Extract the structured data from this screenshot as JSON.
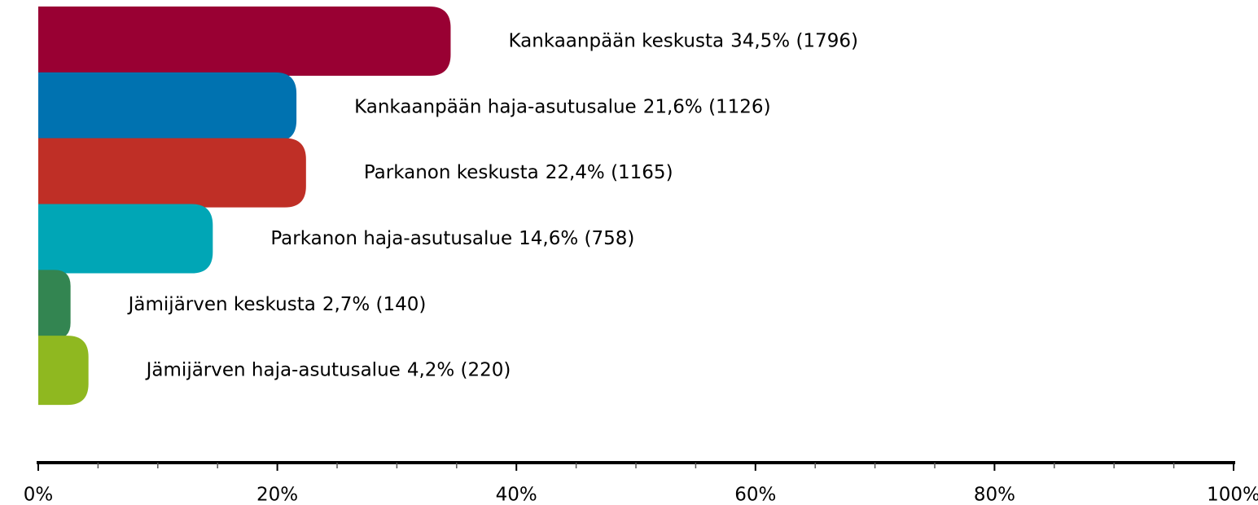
{
  "chart_data": {
    "type": "hbar",
    "categories": [
      "Kankaanpään keskusta",
      "Kankaanpään haja-asutusalue",
      "Parkanon keskusta",
      "Parkanon haja-asutusalue",
      "Jämijärven keskusta",
      "Jämijärven haja-asutusalue"
    ],
    "values": [
      34.5,
      21.6,
      22.4,
      14.6,
      2.7,
      4.2
    ],
    "value_labels": [
      "34,5% (1796)",
      "21,6% (1126)",
      "22,4% (1165)",
      "14,6% (758)",
      "2,7% (140)",
      "4,2% (220)"
    ],
    "colors": [
      "#990033",
      "#0072b0",
      "#bf2f26",
      "#00a6b6",
      "#338551",
      "#8fb820"
    ],
    "xlim": [
      0,
      100
    ],
    "xticks": [
      {
        "value": 0,
        "label": "0%"
      },
      {
        "value": 20,
        "label": "20%"
      },
      {
        "value": 40,
        "label": "40%"
      },
      {
        "value": 60,
        "label": "60%"
      },
      {
        "value": 80,
        "label": "80%"
      },
      {
        "value": 100,
        "label": "100%"
      }
    ],
    "xminorticks": [
      5,
      10,
      15,
      25,
      30,
      35,
      45,
      50,
      55,
      65,
      70,
      75,
      85,
      90,
      95
    ],
    "grid": false
  }
}
